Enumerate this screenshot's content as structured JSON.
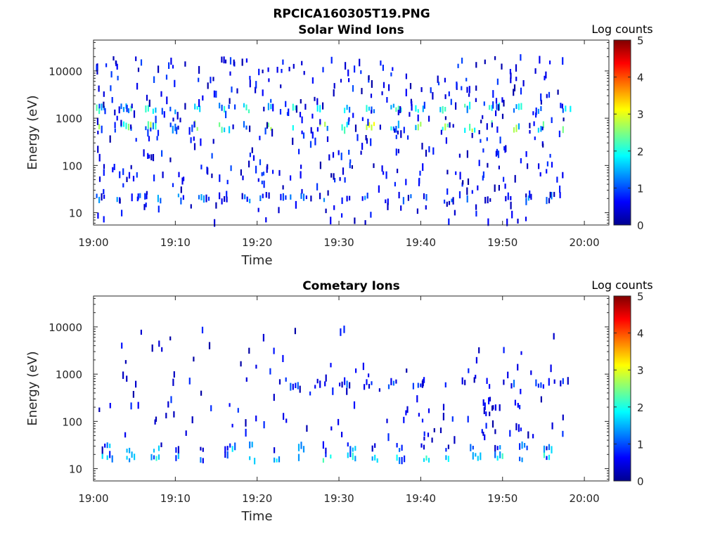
{
  "figure_title": "RPCICA160305T19.PNG",
  "colormap": [
    "#00008f",
    "#0000ff",
    "#0080ff",
    "#00ffff",
    "#80ff80",
    "#ffff00",
    "#ff8000",
    "#ff0000",
    "#800000"
  ],
  "chart_data": [
    {
      "type": "heatmap",
      "title": "Solar Wind Ions",
      "xlabel": "Time",
      "ylabel": "Energy (eV)",
      "x_ticks": [
        "19:00",
        "19:10",
        "19:20",
        "19:30",
        "19:40",
        "19:50",
        "20:00"
      ],
      "y_ticks": [
        "10",
        "100",
        "1000",
        "10000"
      ],
      "y_scale": "log",
      "colorbar_label": "Log counts",
      "colorbar_ticks": [
        "0",
        "1",
        "2",
        "3",
        "4",
        "5"
      ],
      "clim": [
        0,
        5
      ],
      "xlim_minutes_after_19": [
        0,
        63
      ],
      "ylim_eV": [
        5.5,
        45000
      ],
      "bands": [
        {
          "t0": 0.3,
          "t1": 57.5,
          "e": 1600,
          "spacing": 3,
          "min": 1.0,
          "max": 2.3
        },
        {
          "t0": 0.3,
          "t1": 57.5,
          "e": 650,
          "spacing": 3,
          "min": 1.0,
          "max": 3.2
        },
        {
          "t0": 0.3,
          "t1": 57.5,
          "e": 20,
          "spacing": 2.5,
          "min": 0.2,
          "max": 1.5
        }
      ],
      "scatter": [
        {
          "t0": 0.2,
          "t1": 57.5,
          "emin": 30,
          "emax": 20000,
          "count": 420,
          "min": 0.1,
          "max": 1.0
        },
        {
          "t0": 0.2,
          "t1": 57.5,
          "emin": 6,
          "emax": 30,
          "count": 60,
          "min": 0.1,
          "max": 0.8
        }
      ]
    },
    {
      "type": "heatmap",
      "title": "Cometary Ions",
      "xlabel": "Time",
      "ylabel": "Energy (eV)",
      "x_ticks": [
        "19:00",
        "19:10",
        "19:20",
        "19:30",
        "19:40",
        "19:50",
        "20:00"
      ],
      "y_ticks": [
        "10",
        "100",
        "1000",
        "10000"
      ],
      "y_scale": "log",
      "colorbar_label": "Log counts",
      "colorbar_ticks": [
        "0",
        "1",
        "2",
        "3",
        "4",
        "5"
      ],
      "clim": [
        0,
        5
      ],
      "xlim_minutes_after_19": [
        0,
        63
      ],
      "ylim_eV": [
        5.5,
        45000
      ],
      "bands": [
        {
          "t0": 1.0,
          "t1": 57.5,
          "e": 17,
          "spacing": 3,
          "min": 0.5,
          "max": 2.3
        },
        {
          "t0": 1.0,
          "t1": 57.5,
          "e": 28,
          "spacing": 3,
          "min": 0.2,
          "max": 1.8
        },
        {
          "t0": 24.0,
          "t1": 57.5,
          "e": 620,
          "spacing": 3,
          "min": 0.2,
          "max": 1.2
        }
      ],
      "scatter": [
        {
          "t0": 0.5,
          "t1": 57.5,
          "emin": 40,
          "emax": 9000,
          "count": 110,
          "min": 0.1,
          "max": 0.9
        },
        {
          "t0": 40.0,
          "t1": 53.0,
          "emin": 40,
          "emax": 300,
          "count": 30,
          "min": 0.1,
          "max": 0.8
        }
      ]
    }
  ]
}
